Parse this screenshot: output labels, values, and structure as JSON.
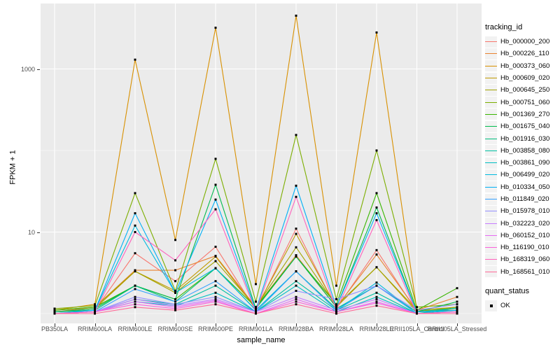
{
  "chart_data": {
    "type": "line",
    "xlabel": "sample_name",
    "ylabel": "FPKM + 1",
    "y_scale": "log10",
    "y_axis_ticks": [
      {
        "label": "1000",
        "value": 1000
      },
      {
        "label": "10",
        "value": 10
      }
    ],
    "y_minor_gridlines": [
      100,
      1
    ],
    "categories": [
      "PB350LA",
      "RRIM600LA",
      "RRIM600LE",
      "RRIM600SE",
      "RRIM600PE",
      "RRIM901LA",
      "RRIM928BA",
      "RRIM928LA",
      "RRIM928LE",
      "RRII105LA_Control",
      "RRII105LA_Stressed"
    ],
    "series": [
      {
        "name": "Hb_000000_200",
        "color": "#F8766D",
        "values": [
          1.05,
          1.1,
          5.5,
          2.5,
          6.6,
          1.1,
          11,
          1.15,
          6.0,
          1.05,
          1.1
        ]
      },
      {
        "name": "Hb_000226_110",
        "color": "#EA8331",
        "values": [
          1.05,
          1.2,
          3.4,
          3.4,
          5.1,
          1.2,
          5.2,
          1.2,
          5.3,
          1.1,
          1.6
        ]
      },
      {
        "name": "Hb_000373_060",
        "color": "#D89000",
        "values": [
          1.1,
          1.3,
          1300,
          8,
          3200,
          2.3,
          4500,
          2.2,
          2800,
          1.1,
          1.1
        ]
      },
      {
        "name": "Hb_000609_020",
        "color": "#C09B00",
        "values": [
          1.05,
          1.15,
          3.3,
          1.9,
          5.0,
          1.15,
          9.5,
          1.2,
          3.7,
          1.05,
          1.2
        ]
      },
      {
        "name": "Hb_000645_250",
        "color": "#A3A500",
        "values": [
          1.1,
          1.2,
          3.3,
          1.8,
          4.4,
          1.2,
          6.5,
          1.25,
          3.7,
          1.1,
          1.2
        ]
      },
      {
        "name": "Hb_000751_060",
        "color": "#7CAE00",
        "values": [
          1.15,
          1.25,
          30,
          1.9,
          79,
          1.4,
          155,
          1.5,
          100,
          1.2,
          1.3
        ]
      },
      {
        "name": "Hb_001369_270",
        "color": "#39B600",
        "values": [
          1.1,
          1.2,
          2.2,
          1.5,
          3.6,
          1.2,
          5.0,
          1.3,
          30,
          1.1,
          2.05
        ]
      },
      {
        "name": "Hb_001675_040",
        "color": "#00BB4E",
        "values": [
          1.05,
          1.15,
          2.2,
          1.5,
          38,
          1.15,
          5.0,
          1.2,
          20,
          1.05,
          1.4
        ]
      },
      {
        "name": "Hb_001916_030",
        "color": "#00BF7D",
        "values": [
          1.05,
          1.1,
          2.2,
          1.4,
          3.6,
          1.1,
          3.3,
          1.15,
          2.2,
          1.05,
          1.17
        ]
      },
      {
        "name": "Hb_003858_080",
        "color": "#00C1A3",
        "values": [
          1.0,
          1.05,
          1.5,
          1.3,
          2.2,
          1.05,
          2.5,
          1.1,
          1.8,
          1.0,
          1.17
        ]
      },
      {
        "name": "Hb_003861_090",
        "color": "#00BFC4",
        "values": [
          1.0,
          1.05,
          1.4,
          1.25,
          1.8,
          1.05,
          2.2,
          1.05,
          1.6,
          1.0,
          1.1
        ]
      },
      {
        "name": "Hb_006499_020",
        "color": "#00BAE0",
        "values": [
          1.0,
          1.1,
          12,
          1.8,
          3.6,
          1.1,
          3.3,
          1.1,
          2.4,
          1.0,
          1.05
        ]
      },
      {
        "name": "Hb_010334_050",
        "color": "#00B0F6",
        "values": [
          1.0,
          1.1,
          17,
          1.8,
          25,
          1.1,
          37,
          1.2,
          17,
          1.05,
          1.1
        ]
      },
      {
        "name": "Hb_011849_020",
        "color": "#35A2FF",
        "values": [
          1.0,
          1.05,
          2.0,
          1.4,
          2.5,
          1.05,
          3.3,
          1.1,
          2.2,
          1.0,
          1.05
        ]
      },
      {
        "name": "Hb_015978_010",
        "color": "#9590FF",
        "values": [
          1.0,
          1.05,
          1.6,
          1.3,
          1.6,
          1.05,
          1.9,
          1.5,
          2.2,
          1.1,
          1.3
        ]
      },
      {
        "name": "Hb_032223_020",
        "color": "#C77CFF",
        "values": [
          1.0,
          1.05,
          1.5,
          1.25,
          1.5,
          1.05,
          1.6,
          1.1,
          1.5,
          1.0,
          1.05
        ]
      },
      {
        "name": "Hb_060152_010",
        "color": "#E76BF3",
        "values": [
          1.0,
          1.05,
          1.4,
          1.2,
          1.45,
          1.0,
          1.5,
          1.05,
          1.4,
          1.0,
          1.05
        ]
      },
      {
        "name": "Hb_116190_010",
        "color": "#FA62DB",
        "values": [
          1.0,
          1.05,
          1.3,
          1.15,
          1.4,
          1.0,
          1.4,
          1.05,
          1.35,
          1.0,
          1.0
        ]
      },
      {
        "name": "Hb_168319_060",
        "color": "#FF62BC",
        "values": [
          1.0,
          1.05,
          10,
          4.5,
          19,
          1.05,
          27,
          1.1,
          14,
          1.0,
          1.05
        ]
      },
      {
        "name": "Hb_168561_010",
        "color": "#FF6A98",
        "values": [
          1.0,
          1.0,
          1.2,
          1.1,
          1.3,
          1.0,
          1.3,
          1.0,
          1.25,
          1.0,
          1.0
        ]
      }
    ],
    "point_style": {
      "color": "#000000",
      "shape": "square",
      "size": 3
    },
    "panel_background": "#EBEBEB",
    "gridline_color": "#FFFFFF",
    "legend_position": "right"
  },
  "legend": {
    "tracking_title": "tracking_id",
    "quant_title": "quant_status",
    "quant_items": [
      {
        "label": "OK"
      }
    ],
    "key_background": "#F2F2F2"
  }
}
